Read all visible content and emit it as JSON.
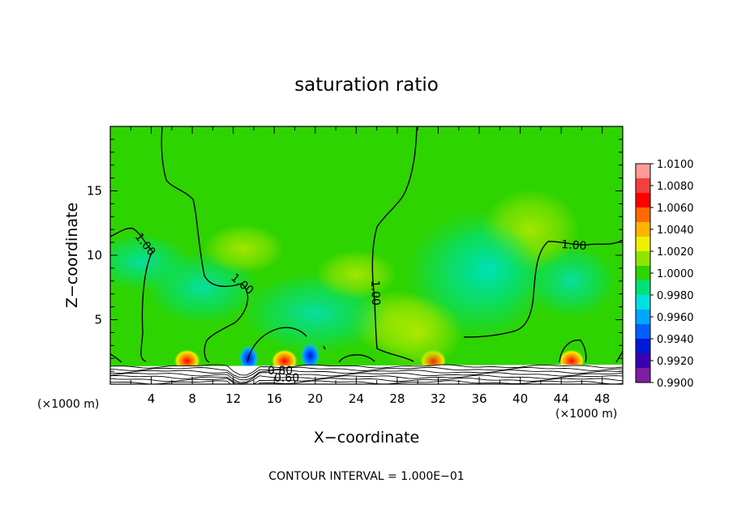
{
  "chart_data": {
    "type": "heatmap",
    "title": "saturation ratio",
    "xlabel": "X−coordinate",
    "ylabel": "Z−coordinate",
    "x_unit": "(×1000 m)",
    "z_unit": "(×1000 m)",
    "xlim": [
      0,
      50
    ],
    "ylim": [
      0,
      20
    ],
    "x_ticks": [
      4,
      8,
      12,
      16,
      20,
      24,
      28,
      32,
      36,
      40,
      44,
      48
    ],
    "y_ticks": [
      5,
      10,
      15
    ],
    "colorbar": {
      "levels": [
        "1.0100",
        "1.0080",
        "1.0060",
        "1.0040",
        "1.0020",
        "1.0000",
        "0.9980",
        "0.9960",
        "0.9940",
        "0.9920",
        "0.9900"
      ],
      "colors": [
        "#ff9a9a",
        "#f04040",
        "#ff0000",
        "#ff6a00",
        "#ffb400",
        "#eef000",
        "#90e400",
        "#2ed400",
        "#00e07a",
        "#00e0e0",
        "#00a6ff",
        "#0060ff",
        "#0018d8",
        "#3a00b0",
        "#7e1ea0"
      ]
    },
    "contour_labels": [
      "1.00",
      "1.00",
      "1.00",
      "1.00",
      "0.80",
      "0.60"
    ],
    "annotation": "CONTOUR INTERVAL = 1.000E−01",
    "field_features": [
      {
        "x": 7.5,
        "z": 1.8,
        "value": 1.007
      },
      {
        "x": 17,
        "z": 1.8,
        "value": 1.007
      },
      {
        "x": 31.5,
        "z": 1.8,
        "value": 1.006
      },
      {
        "x": 45,
        "z": 1.8,
        "value": 1.007
      },
      {
        "x": 19.5,
        "z": 2.2,
        "value": 0.993
      },
      {
        "x": 13.5,
        "z": 2.0,
        "value": 0.995
      },
      {
        "x": 30,
        "z": 4.0,
        "value": 1.002
      },
      {
        "x": 37,
        "z": 9.0,
        "value": 0.998
      }
    ]
  }
}
